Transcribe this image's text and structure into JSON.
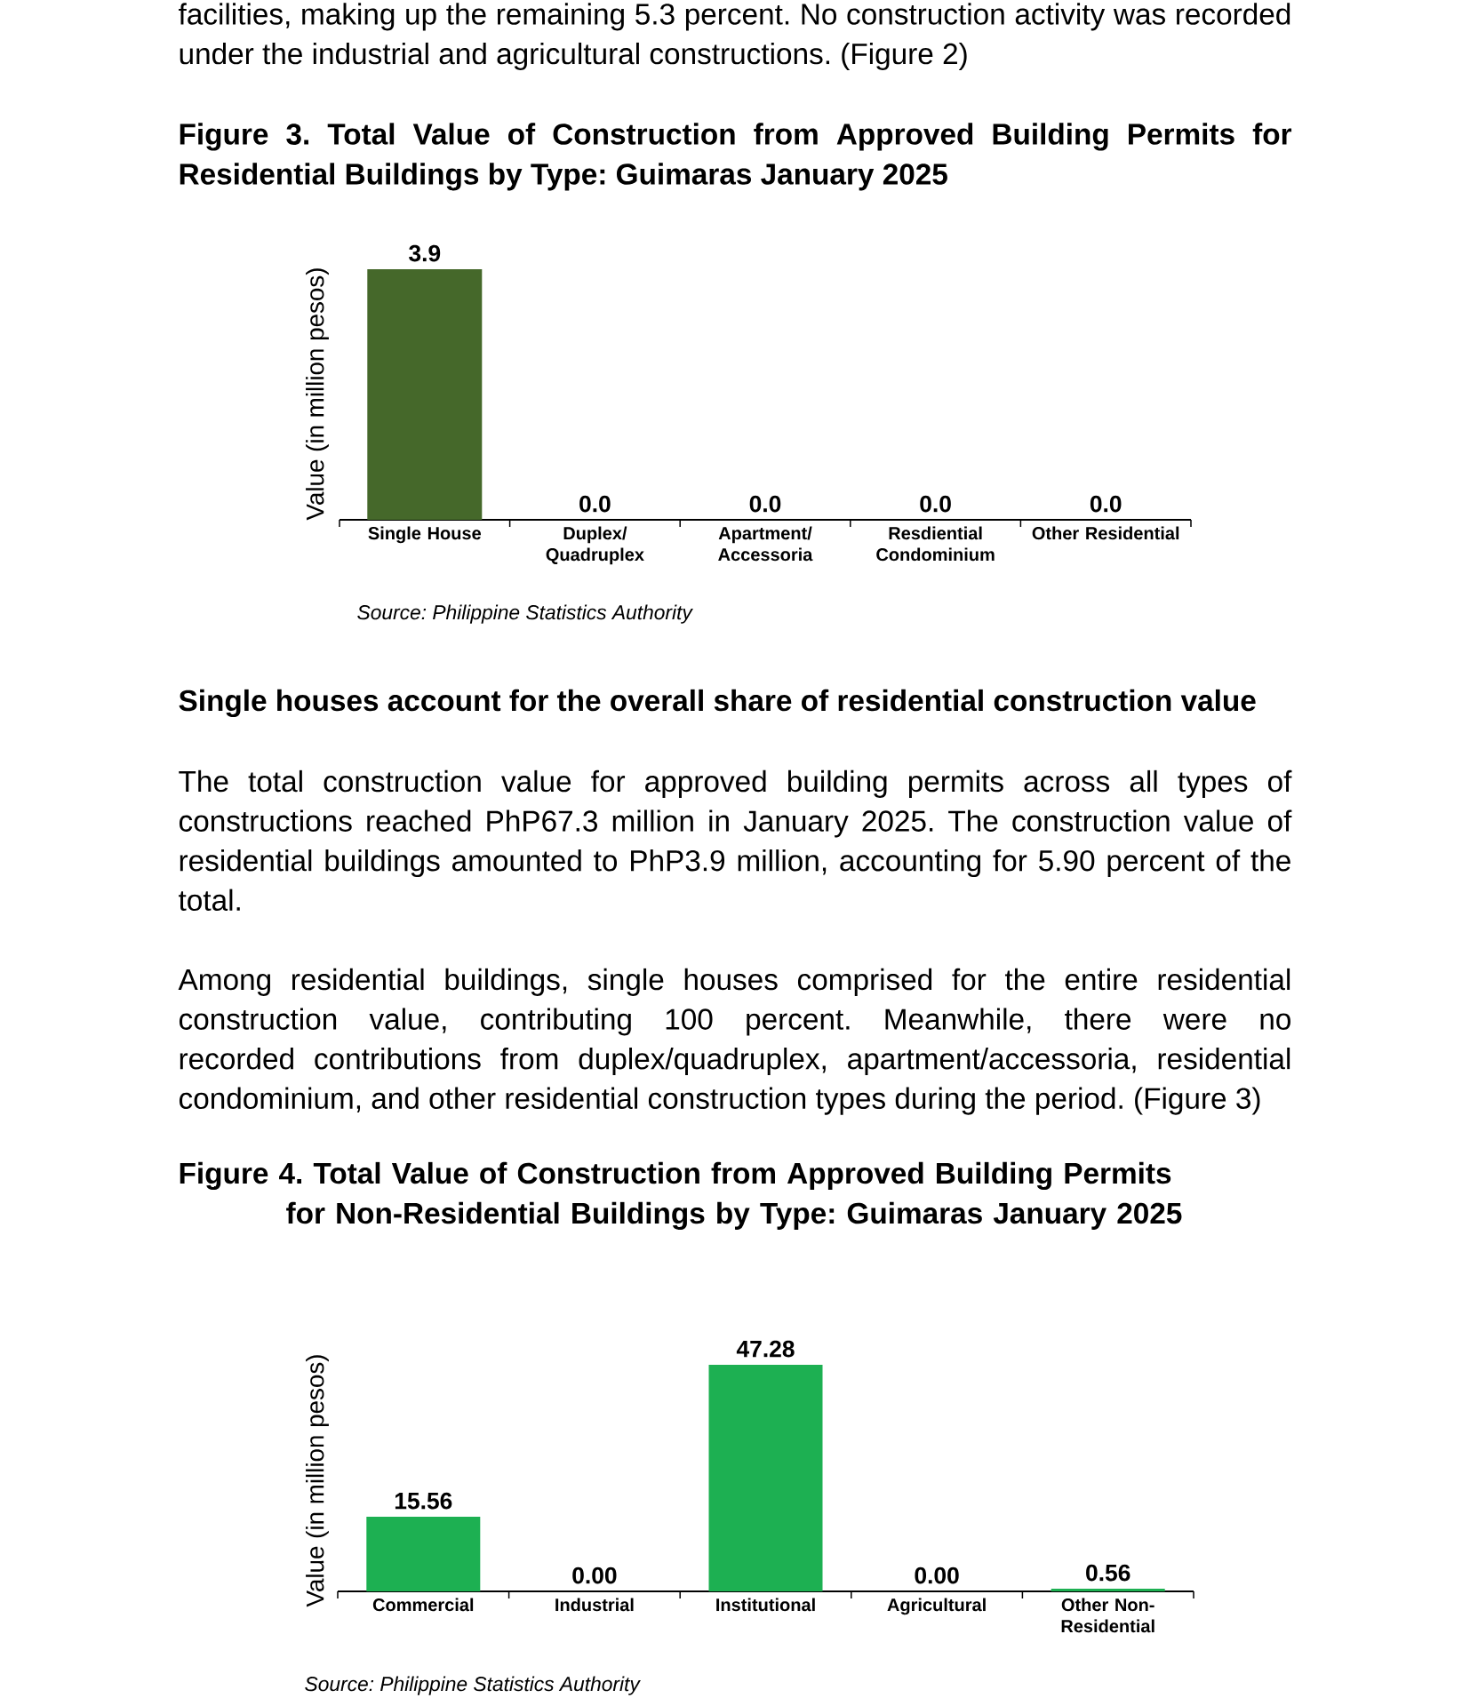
{
  "chart_data": [
    {
      "type": "bar",
      "title": "Figure 3. Total Value of Construction from Approved Building Permits for Residential Buildings by Type: Guimaras January 2025",
      "categories": [
        "Single House",
        "Duplex/ Quadruplex",
        "Apartment/ Accessoria",
        "Resdiential Condominium",
        "Other Residential"
      ],
      "values": [
        3.9,
        0,
        0,
        0,
        0
      ],
      "color": "#45682a",
      "value_labels": [
        "3.9",
        "0.0",
        "0.0",
        "0.0",
        "0.0"
      ],
      "ylabel": "Value (in million pesos)",
      "tick_labels": "x",
      "annotations": [
        "facilities, making up the remaining 5.3 percent. No construction activity was recorded under the industrial and agricultural constructions. (Figure 2)",
        "Source: Philippine Statistics Authority"
      ]
    },
    {
      "type": "bar",
      "title": "Figure 4. Total Value of Construction from Approved Building Permits for Non-Residential Buildings by Type: Guimaras January 2025",
      "categories": [
        "Commercial",
        "Industrial",
        "Institutional",
        "Agricultural",
        "Other Non-Residential"
      ],
      "values": [
        15.56,
        0,
        47.28,
        0,
        0.56
      ],
      "color": "#1db052",
      "value_labels": [
        "15.56",
        "0.00",
        "47.28",
        "0.00",
        "0.56"
      ],
      "ylabel": "Value (in million pesos)",
      "tick_labels": "x",
      "annotations": [
        "Single houses account for the overall share of residential construction value",
        "The total construction value for approved building permits across all types of constructions reached PhP67.3 million in January 2025. The construction value of residential buildings amounted to PhP3.9 million, accounting for 5.90 percent of the total.",
        "Among residential buildings, single houses comprised for the entire residential construction value, contributing 100 percent. Meanwhile, there were no recorded contributions from duplex/quadruplex, apartment/accessoria, residential condominium, and other residential construction types during the period. (Figure 3)",
        "Source: Philippine Statistics Authority"
      ]
    }
  ]
}
